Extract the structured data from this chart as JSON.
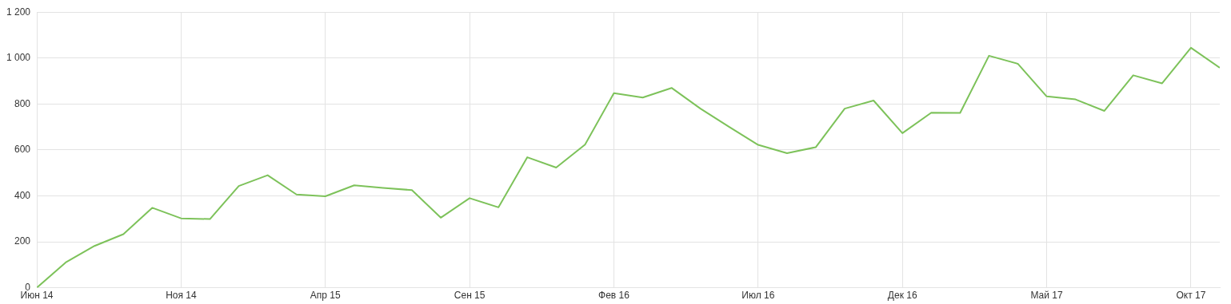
{
  "chart_data": {
    "type": "line",
    "x": [
      "2014-06",
      "2014-07",
      "2014-08",
      "2014-09",
      "2014-10",
      "2014-11",
      "2014-12",
      "2015-01",
      "2015-02",
      "2015-03",
      "2015-04",
      "2015-05",
      "2015-06",
      "2015-07",
      "2015-08",
      "2015-09",
      "2015-10",
      "2015-11",
      "2015-12",
      "2016-01",
      "2016-02",
      "2016-03",
      "2016-04",
      "2016-05",
      "2016-06",
      "2016-07",
      "2016-08",
      "2016-09",
      "2016-10",
      "2016-11",
      "2016-12",
      "2017-01",
      "2017-02",
      "2017-03",
      "2017-04",
      "2017-05",
      "2017-06",
      "2017-07",
      "2017-08",
      "2017-09",
      "2017-10",
      "2017-11"
    ],
    "series": [
      {
        "color": "#7dc25a",
        "values": [
          0,
          110,
          182,
          233,
          348,
          302,
          299,
          443,
          490,
          406,
          398,
          446,
          435,
          425,
          305,
          390,
          350,
          568,
          523,
          623,
          847,
          828,
          870,
          780,
          700,
          622,
          586,
          612,
          780,
          815,
          673,
          762,
          761,
          1010,
          975,
          833,
          820,
          770,
          925,
          890,
          1045,
          958
        ]
      }
    ],
    "xlim": [
      "2014-06",
      "2017-11"
    ],
    "xticks": [
      {
        "value": "2014-06",
        "label": "Июн 14"
      },
      {
        "value": "2014-11",
        "label": "Ноя 14"
      },
      {
        "value": "2015-04",
        "label": "Апр 15"
      },
      {
        "value": "2015-09",
        "label": "Сен 15"
      },
      {
        "value": "2016-02",
        "label": "Фев 16"
      },
      {
        "value": "2016-07",
        "label": "Июл 16"
      },
      {
        "value": "2016-12",
        "label": "Дек 16"
      },
      {
        "value": "2017-05",
        "label": "Май 17"
      },
      {
        "value": "2017-10",
        "label": "Окт 17"
      }
    ],
    "ylim": [
      0,
      1200
    ],
    "yticks": [
      0,
      200,
      400,
      600,
      800,
      {
        "value": 1000,
        "label": "1 000"
      },
      {
        "value": 1200,
        "label": "1 200"
      }
    ],
    "grid": true,
    "legend": false,
    "marker": "none",
    "line_style": "solid"
  }
}
